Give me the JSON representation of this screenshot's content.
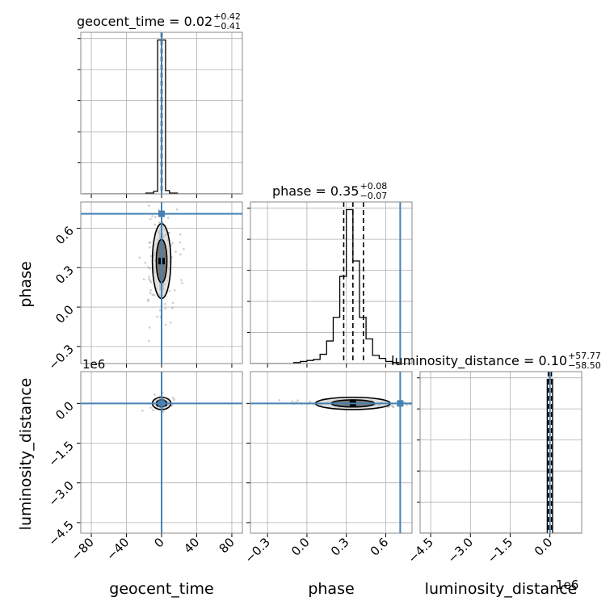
{
  "chart_data": {
    "type": "corner",
    "parameters": [
      "geocent_time",
      "phase",
      "luminosity_distance"
    ],
    "axis_labels": {
      "geocent_time": "geocent_time",
      "phase": "phase",
      "luminosity_distance": "luminosity_distance"
    },
    "titles": [
      {
        "param": "geocent_time",
        "name": "geocent_time",
        "median": "0.02",
        "plus": "+0.42",
        "minus": "−0.41"
      },
      {
        "param": "phase",
        "name": "phase",
        "median": "0.35",
        "plus": "+0.08",
        "minus": "−0.07"
      },
      {
        "param": "luminosity_distance",
        "name": "luminosity_distance",
        "median": "0.10",
        "plus": "+57.77",
        "minus": "−58.50"
      }
    ],
    "ranges": {
      "geocent_time": [
        -92,
        92
      ],
      "phase": [
        -0.43,
        0.8
      ],
      "luminosity_distance": [
        -4.9,
        1.2
      ]
    },
    "ticks": {
      "geocent_time": {
        "values": [
          -80,
          -40,
          0,
          40,
          80
        ],
        "labels": [
          "−80",
          "−40",
          "0",
          "40",
          "80"
        ]
      },
      "phase": {
        "values": [
          -0.3,
          0.0,
          0.3,
          0.6
        ],
        "labels": [
          "−0.3",
          "0.0",
          "0.3",
          "0.6"
        ]
      },
      "luminosity_distance": {
        "values": [
          -4.5,
          -3.0,
          -1.5,
          0.0
        ],
        "labels": [
          "−4.5",
          "−3.0",
          "−1.5",
          "0.0"
        ]
      }
    },
    "offset_text": "1e6",
    "truths": {
      "geocent_time": 0.0,
      "phase": 0.71,
      "luminosity_distance": 0.0
    },
    "quantiles": {
      "geocent_time": [
        -0.39,
        0.02,
        0.44
      ],
      "phase": [
        0.28,
        0.35,
        0.43
      ],
      "luminosity_distance": [
        -0.0584,
        0.0001,
        0.0579
      ]
    },
    "hist_1d": {
      "geocent_time": {
        "edges": [
          -90,
          -72,
          -54,
          -36,
          -18,
          -9,
          -4.5,
          4.5,
          9,
          18,
          36,
          54,
          72,
          90
        ],
        "counts": [
          0,
          0,
          0,
          0,
          0.5,
          1.5,
          92,
          2,
          0.5,
          0,
          0,
          0,
          0
        ]
      },
      "phase": {
        "edges": [
          -0.43,
          -0.1,
          -0.05,
          0.0,
          0.05,
          0.1,
          0.15,
          0.2,
          0.25,
          0.3,
          0.35,
          0.4,
          0.45,
          0.5,
          0.55,
          0.6,
          0.65,
          0.7,
          0.8
        ],
        "counts": [
          0,
          1,
          2,
          3,
          4,
          9,
          22,
          45,
          85,
          150,
          100,
          45,
          24,
          8,
          5,
          2,
          1,
          0
        ]
      },
      "luminosity_distance": {
        "edges": [
          -4.9,
          -0.1,
          0.1,
          1.2
        ],
        "counts": [
          0,
          95,
          0
        ]
      }
    },
    "grid": true,
    "colors": {
      "truth": "#4682b4",
      "hist": "#000000",
      "scatter": "#9a9a9a",
      "grid": "#b0b0b0"
    }
  }
}
